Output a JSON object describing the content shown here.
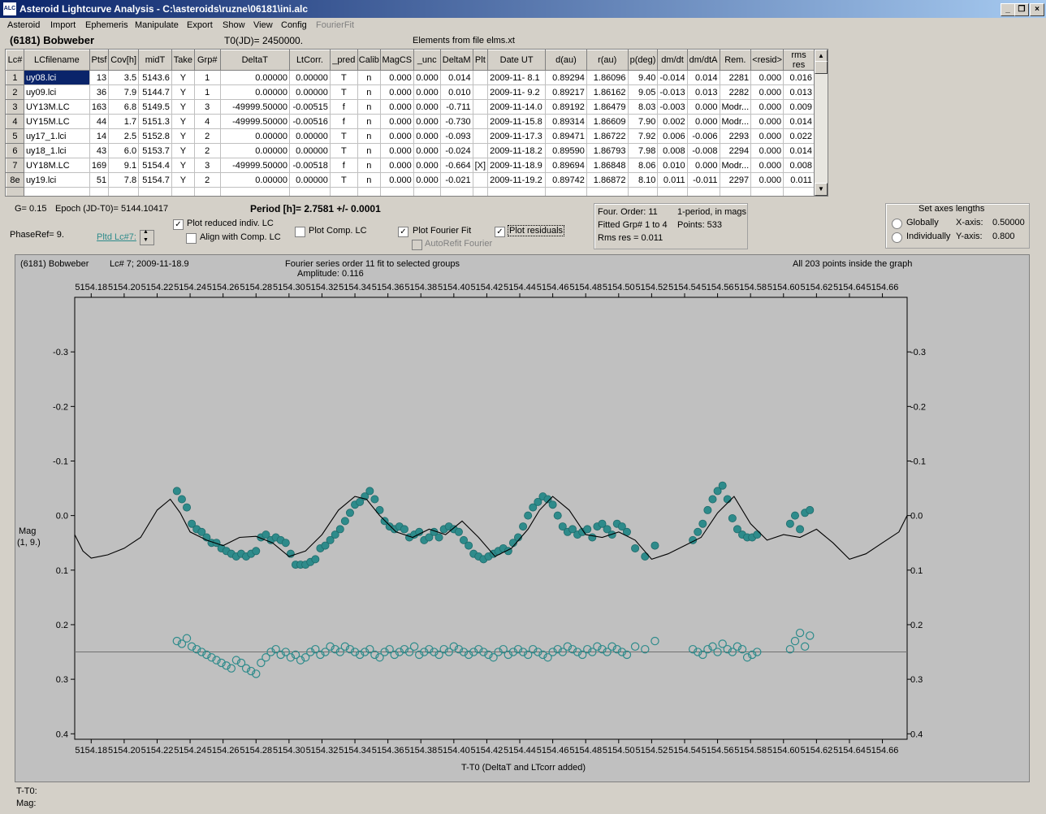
{
  "window": {
    "title": "Asteroid Lightcurve Analysis - C:\\asteroids\\ruzne\\06181\\ini.alc",
    "app_icon": "ALC"
  },
  "menu": [
    "Asteroid",
    "Import",
    "Ephemeris",
    "Manipulate",
    "Export",
    "Show",
    "View",
    "Config",
    "FourierFit"
  ],
  "header": {
    "asteroid": "(6181) Bobweber",
    "t0": "T0(JD)= 2450000.",
    "elements": "Elements from file elms.xt"
  },
  "table": {
    "columns": [
      "Lc#",
      "LCfilename",
      "Ptsf",
      "Cov[h]",
      "midT",
      "Take",
      "Grp#",
      "DeltaT",
      "LtCorr.",
      "_pred",
      "Calib",
      "MagCS",
      "_unc",
      "DeltaM",
      "Plt",
      "Date UT",
      "d(au)",
      "r(au)",
      "p(deg)",
      "dm/dt",
      "dm/dtA",
      "Rem.",
      "<resid>",
      "rms res"
    ],
    "rows": [
      [
        "1",
        "uy08.lci",
        "13",
        "3.5",
        "5143.6",
        "Y",
        "1",
        "0.00000",
        "0.00000",
        "T",
        "n",
        "0.000",
        "0.000",
        "0.014",
        "",
        "2009-11- 8.1",
        "0.89294",
        "1.86096",
        "9.40",
        "-0.014",
        "0.014",
        "2281",
        "0.000",
        "0.016"
      ],
      [
        "2",
        "uy09.lci",
        "36",
        "7.9",
        "5144.7",
        "Y",
        "1",
        "0.00000",
        "0.00000",
        "T",
        "n",
        "0.000",
        "0.000",
        "0.010",
        "",
        "2009-11- 9.2",
        "0.89217",
        "1.86162",
        "9.05",
        "-0.013",
        "0.013",
        "2282",
        "0.000",
        "0.013"
      ],
      [
        "3",
        "UY13M.LC",
        "163",
        "6.8",
        "5149.5",
        "Y",
        "3",
        "-49999.50000",
        "-0.00515",
        "f",
        "n",
        "0.000",
        "0.000",
        "-0.711",
        "",
        "2009-11-14.0",
        "0.89192",
        "1.86479",
        "8.03",
        "-0.003",
        "0.000",
        "Modr...",
        "0.000",
        "0.009"
      ],
      [
        "4",
        "UY15M.LC",
        "44",
        "1.7",
        "5151.3",
        "Y",
        "4",
        "-49999.50000",
        "-0.00516",
        "f",
        "n",
        "0.000",
        "0.000",
        "-0.730",
        "",
        "2009-11-15.8",
        "0.89314",
        "1.86609",
        "7.90",
        "0.002",
        "0.000",
        "Modr...",
        "0.000",
        "0.014"
      ],
      [
        "5",
        "uy17_1.lci",
        "14",
        "2.5",
        "5152.8",
        "Y",
        "2",
        "0.00000",
        "0.00000",
        "T",
        "n",
        "0.000",
        "0.000",
        "-0.093",
        "",
        "2009-11-17.3",
        "0.89471",
        "1.86722",
        "7.92",
        "0.006",
        "-0.006",
        "2293",
        "0.000",
        "0.022"
      ],
      [
        "6",
        "uy18_1.lci",
        "43",
        "6.0",
        "5153.7",
        "Y",
        "2",
        "0.00000",
        "0.00000",
        "T",
        "n",
        "0.000",
        "0.000",
        "-0.024",
        "",
        "2009-11-18.2",
        "0.89590",
        "1.86793",
        "7.98",
        "0.008",
        "-0.008",
        "2294",
        "0.000",
        "0.014"
      ],
      [
        "7",
        "UY18M.LC",
        "169",
        "9.1",
        "5154.4",
        "Y",
        "3",
        "-49999.50000",
        "-0.00518",
        "f",
        "n",
        "0.000",
        "0.000",
        "-0.664",
        "[X]",
        "2009-11-18.9",
        "0.89694",
        "1.86848",
        "8.06",
        "0.010",
        "0.000",
        "Modr...",
        "0.000",
        "0.008"
      ],
      [
        "8e",
        "uy19.lci",
        "51",
        "7.8",
        "5154.7",
        "Y",
        "2",
        "0.00000",
        "0.00000",
        "T",
        "n",
        "0.000",
        "0.000",
        "-0.021",
        "",
        "2009-11-19.2",
        "0.89742",
        "1.86872",
        "8.10",
        "0.011",
        "-0.011",
        "2297",
        "0.000",
        "0.011"
      ]
    ]
  },
  "controls": {
    "g": "G= 0.15",
    "epoch": "Epoch (JD-T0)= 5144.10417",
    "period": "Period [h]= 2.7581 +/- 0.0001",
    "phaseref": "PhaseRef= 9.",
    "pltd": "Pltd Lc#7:",
    "plot_reduced": "Plot reduced indiv. LC",
    "align": "Align with Comp. LC",
    "plot_comp": "Plot Comp. LC",
    "plot_fourier": "Plot Fourier Fit",
    "autorefit": "AutoRefit Fourier",
    "plot_residuals": "Plot residuals",
    "check_mark": "✓"
  },
  "fourier_box": {
    "order": "Four. Order: 11",
    "mode": "1-period, in mags",
    "fitted": "Fitted Grp# 1 to 4",
    "points": "Points: 533",
    "rms": "Rms res    = 0.011"
  },
  "axes_box": {
    "title": "Set axes lengths",
    "globally": "Globally",
    "individually": "Individually",
    "xaxis_label": "X-axis:",
    "xaxis_val": "0.50000",
    "yaxis_label": "Y-axis:",
    "yaxis_val": "0.800"
  },
  "plot": {
    "left_title": "(6181) Bobweber",
    "lc_info": "Lc# 7; 2009-11-18.9",
    "fourier_title": "Fourier series order 11 fit to selected groups",
    "amplitude": "Amplitude: 0.116",
    "inside": "All 203 points inside the graph",
    "ylabel1": "Mag",
    "ylabel2": "(1, 9.)",
    "xlabel": "T-T0 (DeltaT and LTcorr added)"
  },
  "status": {
    "t": "T-T0:",
    "mag": "Mag:"
  },
  "chart_data": {
    "type": "scatter",
    "xlim": [
      5154.17,
      5154.675
    ],
    "ylim": [
      -0.4,
      0.41
    ],
    "y_inverted": true,
    "x_ticks": [
      5154.18,
      5154.2,
      5154.22,
      5154.24,
      5154.26,
      5154.28,
      5154.3,
      5154.32,
      5154.34,
      5154.36,
      5154.38,
      5154.4,
      5154.42,
      5154.44,
      5154.46,
      5154.48,
      5154.5,
      5154.52,
      5154.54,
      5154.56,
      5154.58,
      5154.6,
      5154.62,
      5154.64,
      5154.66
    ],
    "x_tick_labels": [
      "5154.18",
      "5154.20",
      "5154.22",
      "5154.24",
      "5154.26",
      "5154.28",
      "5154.30",
      "5154.32",
      "5154.34",
      "5154.36",
      "5154.38",
      "5154.40",
      "5154.42",
      "5154.44",
      "5154.46",
      "5154.48",
      "5154.50",
      "5154.52",
      "5154.54",
      "5154.56",
      "5154.58",
      "5154.60",
      "5154.62",
      "5154.64",
      "5154.66"
    ],
    "y_ticks": [
      -0.3,
      -0.2,
      -0.1,
      0.0,
      0.1,
      0.2,
      0.3,
      0.4
    ],
    "y_tick_labels": [
      "-0.3",
      "-0.2",
      "-0.1",
      "0.0",
      "0.1",
      "0.2",
      "0.3",
      "0.4"
    ],
    "residual_baseline": 0.25,
    "point_color": "#2e8b8b",
    "fourier_fit": {
      "x": [
        5154.17,
        5154.175,
        5154.18,
        5154.19,
        5154.2,
        5154.21,
        5154.22,
        5154.228,
        5154.234,
        5154.24,
        5154.25,
        5154.26,
        5154.27,
        5154.28,
        5154.29,
        5154.3,
        5154.31,
        5154.32,
        5154.33,
        5154.34,
        5154.347,
        5154.355,
        5154.365,
        5154.375,
        5154.385,
        5154.395,
        5154.405,
        5154.415,
        5154.425,
        5154.435,
        5154.445,
        5154.452,
        5154.46,
        5154.47,
        5154.48,
        5154.49,
        5154.5,
        5154.51,
        5154.52,
        5154.53,
        5154.54,
        5154.55,
        5154.56,
        5154.57,
        5154.58,
        5154.59,
        5154.6,
        5154.61,
        5154.62,
        5154.63,
        5154.64,
        5154.65,
        5154.66,
        5154.67,
        5154.675
      ],
      "y": [
        0.035,
        0.065,
        0.078,
        0.072,
        0.06,
        0.04,
        -0.01,
        -0.03,
        -0.005,
        0.03,
        0.045,
        0.055,
        0.04,
        0.038,
        0.05,
        0.075,
        0.065,
        0.035,
        -0.01,
        -0.035,
        -0.03,
        0.0,
        0.03,
        0.04,
        0.025,
        0.035,
        0.01,
        0.04,
        0.075,
        0.06,
        0.025,
        -0.01,
        -0.035,
        -0.01,
        0.035,
        0.04,
        0.03,
        0.045,
        0.08,
        0.07,
        0.055,
        0.04,
        -0.005,
        -0.035,
        0.015,
        0.045,
        0.035,
        0.04,
        0.025,
        0.05,
        0.08,
        0.07,
        0.05,
        0.03,
        0.0
      ]
    },
    "observed": {
      "x": [
        5154.232,
        5154.235,
        5154.238,
        5154.241,
        5154.244,
        5154.247,
        5154.25,
        5154.253,
        5154.256,
        5154.259,
        5154.262,
        5154.265,
        5154.268,
        5154.271,
        5154.274,
        5154.277,
        5154.28,
        5154.283,
        5154.286,
        5154.289,
        5154.292,
        5154.295,
        5154.298,
        5154.301,
        5154.304,
        5154.307,
        5154.31,
        5154.313,
        5154.316,
        5154.319,
        5154.322,
        5154.325,
        5154.328,
        5154.331,
        5154.334,
        5154.337,
        5154.34,
        5154.343,
        5154.346,
        5154.349,
        5154.352,
        5154.355,
        5154.358,
        5154.361,
        5154.364,
        5154.367,
        5154.37,
        5154.373,
        5154.376,
        5154.379,
        5154.382,
        5154.385,
        5154.388,
        5154.391,
        5154.394,
        5154.397,
        5154.4,
        5154.403,
        5154.406,
        5154.409,
        5154.412,
        5154.415,
        5154.418,
        5154.421,
        5154.424,
        5154.427,
        5154.43,
        5154.433,
        5154.436,
        5154.439,
        5154.442,
        5154.445,
        5154.448,
        5154.451,
        5154.454,
        5154.457,
        5154.46,
        5154.463,
        5154.466,
        5154.469,
        5154.472,
        5154.475,
        5154.478,
        5154.481,
        5154.484,
        5154.487,
        5154.49,
        5154.493,
        5154.496,
        5154.499,
        5154.502,
        5154.505,
        5154.51,
        5154.516,
        5154.522,
        5154.545,
        5154.548,
        5154.551,
        5154.554,
        5154.557,
        5154.56,
        5154.563,
        5154.566,
        5154.569,
        5154.572,
        5154.575,
        5154.578,
        5154.581,
        5154.584,
        5154.604,
        5154.607,
        5154.61,
        5154.613,
        5154.616
      ],
      "y": [
        -0.045,
        -0.03,
        -0.015,
        0.015,
        0.025,
        0.03,
        0.04,
        0.05,
        0.05,
        0.06,
        0.065,
        0.07,
        0.075,
        0.07,
        0.075,
        0.07,
        0.065,
        0.04,
        0.035,
        0.045,
        0.04,
        0.045,
        0.05,
        0.07,
        0.09,
        0.09,
        0.09,
        0.085,
        0.08,
        0.06,
        0.055,
        0.045,
        0.035,
        0.025,
        0.01,
        -0.005,
        -0.02,
        -0.025,
        -0.035,
        -0.045,
        -0.03,
        -0.01,
        0.01,
        0.02,
        0.025,
        0.02,
        0.025,
        0.04,
        0.035,
        0.03,
        0.045,
        0.04,
        0.03,
        0.04,
        0.025,
        0.02,
        0.025,
        0.03,
        0.045,
        0.055,
        0.07,
        0.075,
        0.08,
        0.075,
        0.07,
        0.065,
        0.06,
        0.065,
        0.05,
        0.04,
        0.02,
        0.0,
        -0.015,
        -0.025,
        -0.035,
        -0.03,
        -0.02,
        0.0,
        0.02,
        0.03,
        0.025,
        0.035,
        0.03,
        0.025,
        0.04,
        0.02,
        0.015,
        0.025,
        0.035,
        0.015,
        0.02,
        0.03,
        0.06,
        0.075,
        0.055,
        0.045,
        0.03,
        0.015,
        -0.01,
        -0.03,
        -0.045,
        -0.055,
        -0.03,
        0.005,
        0.025,
        0.035,
        0.04,
        0.04,
        0.035,
        0.015,
        0.0,
        0.025,
        -0.005,
        -0.01
      ],
      "residuals": [
        0.23,
        0.235,
        0.225,
        0.24,
        0.245,
        0.25,
        0.255,
        0.26,
        0.265,
        0.27,
        0.275,
        0.28,
        0.265,
        0.27,
        0.28,
        0.285,
        0.29,
        0.27,
        0.26,
        0.25,
        0.245,
        0.255,
        0.25,
        0.26,
        0.255,
        0.265,
        0.26,
        0.25,
        0.245,
        0.255,
        0.25,
        0.24,
        0.245,
        0.25,
        0.24,
        0.245,
        0.25,
        0.255,
        0.25,
        0.245,
        0.255,
        0.26,
        0.25,
        0.245,
        0.255,
        0.25,
        0.245,
        0.25,
        0.24,
        0.255,
        0.25,
        0.245,
        0.25,
        0.255,
        0.245,
        0.25,
        0.24,
        0.245,
        0.25,
        0.255,
        0.25,
        0.245,
        0.25,
        0.255,
        0.26,
        0.25,
        0.245,
        0.255,
        0.25,
        0.245,
        0.25,
        0.255,
        0.245,
        0.25,
        0.255,
        0.26,
        0.25,
        0.245,
        0.25,
        0.24,
        0.245,
        0.25,
        0.255,
        0.245,
        0.25,
        0.24,
        0.245,
        0.25,
        0.24,
        0.245,
        0.25,
        0.255,
        0.24,
        0.245,
        0.23,
        0.245,
        0.25,
        0.255,
        0.245,
        0.24,
        0.25,
        0.235,
        0.245,
        0.25,
        0.24,
        0.245,
        0.26,
        0.255,
        0.25,
        0.245,
        0.23,
        0.215,
        0.24,
        0.22
      ]
    }
  }
}
